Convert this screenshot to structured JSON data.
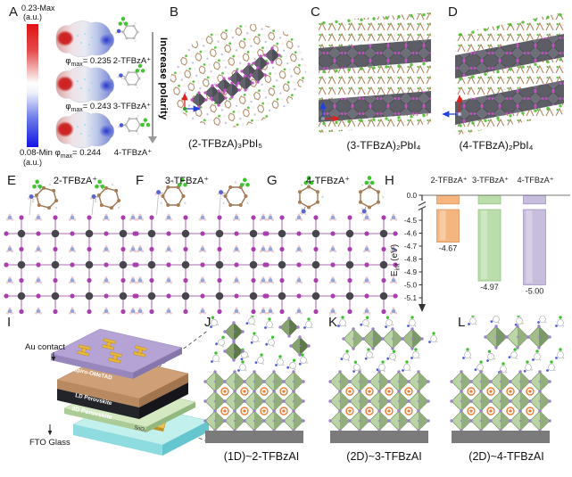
{
  "figure": {
    "background": "#ffffff"
  },
  "panels": {
    "A": {
      "letter": "A",
      "colorbar": {
        "top": "0.23-Max",
        "top_unit": "(a.u.)",
        "bottom": "0.08-Min",
        "bottom_unit": "(a.u.)",
        "top_color": "#e01212",
        "bottom_color": "#1414e4"
      },
      "entries": [
        {
          "phi_sym": "φ",
          "phi_sub": "max",
          "phi_val": "= 0.235",
          "name": "2-TFBzA⁺"
        },
        {
          "phi_sym": "φ",
          "phi_sub": "max",
          "phi_val": "= 0.243",
          "name": "3-TFBzA⁺"
        },
        {
          "phi_sym": "φ",
          "phi_sub": "max",
          "phi_val": "= 0.244",
          "name": "4-TFBzA⁺"
        }
      ],
      "arrow_label": "Increase polarity"
    },
    "B": {
      "letter": "B",
      "caption": "(2-TFBzA)₃PbI₅"
    },
    "C": {
      "letter": "C",
      "caption": "(3-TFBzA)₂PbI₄"
    },
    "D": {
      "letter": "D",
      "caption": "(4-TFBzA)₂PbI₄"
    },
    "E": {
      "letter": "E",
      "title": "2-TFBzA⁺"
    },
    "F": {
      "letter": "F",
      "title": "3-TFBzA⁺"
    },
    "G": {
      "letter": "G",
      "title": "4-TFBzA⁺"
    },
    "H": {
      "letter": "H",
      "ylabel_main": "E",
      "ylabel_sub": "int",
      "ylabel_unit": " (eV)"
    },
    "I": {
      "letter": "I",
      "au_label": "Au contact",
      "fto_label": "FTO Glass",
      "layers": [
        "Spiro-OMeTAD",
        "LD Perovskite",
        "3D Perovskite",
        "SnO₂"
      ]
    },
    "J": {
      "letter": "J",
      "caption": "(1D)~2-TFBzAI"
    },
    "K": {
      "letter": "K",
      "caption": "(2D)~3-TFBzAI"
    },
    "L": {
      "letter": "L",
      "caption": "(2D)~4-TFBzAI"
    }
  },
  "chart_data": {
    "type": "bar",
    "title": "",
    "categories": [
      "2-TFBzA⁺",
      "3-TFBzA⁺",
      "4-TFBzA⁺"
    ],
    "values": [
      -4.67,
      -4.97,
      -5.0
    ],
    "value_labels": [
      "-4.67",
      "-4.97",
      "-5.00"
    ],
    "bar_colors": [
      "#f4b57f",
      "#bbdcab",
      "#c7bddc"
    ],
    "bar_edge_colors": [
      "#d98e54",
      "#8fbe7e",
      "#9d8fc0"
    ],
    "ylabel": "E_int (eV)",
    "ytick_labels": [
      "0.0",
      "-4.5",
      "-4.6",
      "-4.7",
      "-4.8",
      "-4.9",
      "-5.0",
      "-5.1"
    ],
    "axis_break": true,
    "ylim": [
      0.0,
      -5.1
    ],
    "grid": false,
    "legend": null
  }
}
